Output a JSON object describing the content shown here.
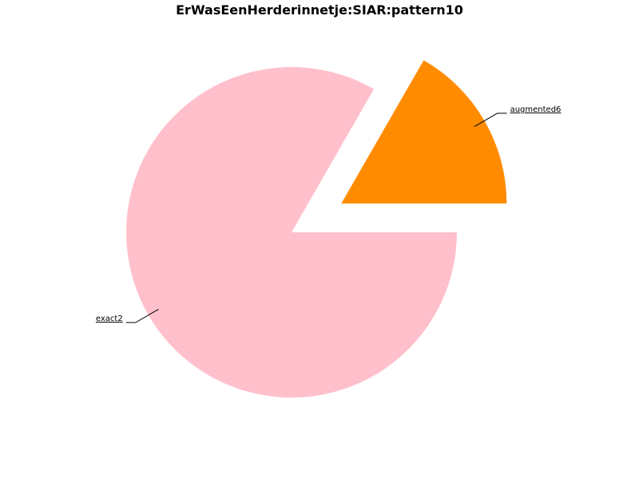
{
  "chart_data": {
    "type": "pie",
    "title": "ErWasEenHerderinnetje:SIAR:pattern10",
    "slices": [
      {
        "label": "exact2",
        "value": 83.3,
        "color": "#ffc0cb",
        "exploded": false
      },
      {
        "label": "augmented6",
        "value": 16.7,
        "color": "#ff8c00",
        "exploded": true
      }
    ],
    "start_angle_deg": 0,
    "direction": "clockwise",
    "legend": "none"
  }
}
